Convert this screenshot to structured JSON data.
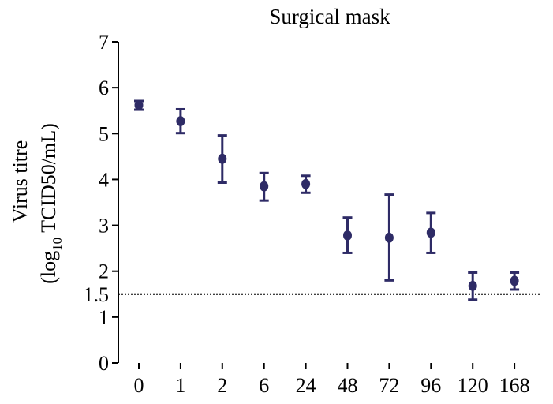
{
  "chart_data": {
    "type": "scatter",
    "title": "Surgical mask",
    "ylabel_line1": "Virus titre",
    "ylabel_line2_prefix": "(log",
    "ylabel_line2_sub": "10",
    "ylabel_line2_suffix": " TCID50/mL)",
    "xlabel": "",
    "categories": [
      "0",
      "1",
      "2",
      "6",
      "24",
      "48",
      "72",
      "96",
      "120",
      "168"
    ],
    "ylim": [
      0,
      7
    ],
    "yticks": [
      "0",
      "1",
      "2",
      "3",
      "4",
      "5",
      "6",
      "7"
    ],
    "extra_ytick": "1.5",
    "threshold": 1.5,
    "series": [
      {
        "values": [
          5.62,
          5.27,
          4.45,
          3.85,
          3.9,
          2.78,
          2.73,
          2.84,
          1.68,
          1.79
        ],
        "lower": [
          5.52,
          5.01,
          3.93,
          3.54,
          3.71,
          2.4,
          1.8,
          2.4,
          1.38,
          1.6
        ],
        "upper": [
          5.71,
          5.53,
          4.96,
          4.14,
          4.08,
          3.17,
          3.67,
          3.27,
          1.97,
          1.97
        ]
      }
    ],
    "marker_color": "#2e2b66",
    "grid": false,
    "legend": "none"
  }
}
